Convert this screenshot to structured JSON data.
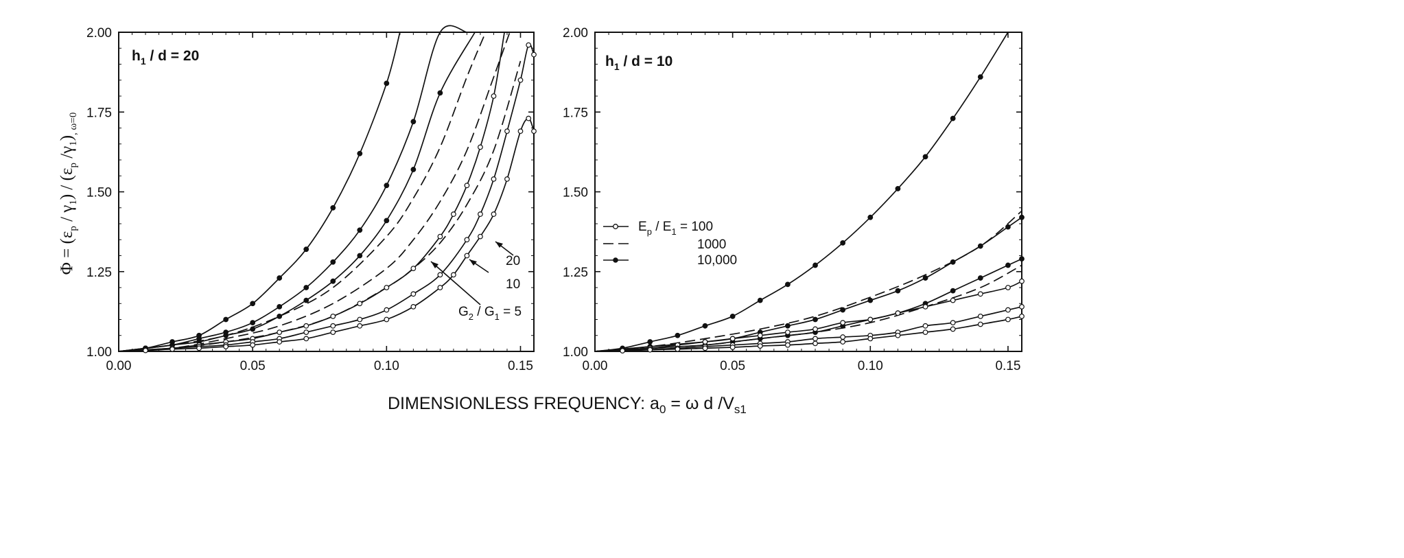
{
  "figure": {
    "ylabel": {
      "phi": "Φ",
      "eq": " = (ε",
      "p1": "p",
      "mid1": " / γ",
      "s1": "1",
      "mid2": ") / (ε",
      "p2": "p",
      "mid3": " /γ",
      "s2": "1",
      "end": ")",
      "sub": ", ω=0"
    },
    "xlabel": {
      "text": "DIMENSIONLESS FREQUENCY:  a",
      "sub0": "0",
      "mid": " = ω d /V",
      "sub1": "s1"
    },
    "legend": [
      {
        "label": "E",
        "sub": "p",
        "rest": " / E",
        "sub2": "1",
        "value": " = 100",
        "marker": "open",
        "dash": "solid"
      },
      {
        "label": "",
        "value": "1000",
        "marker": "none",
        "dash": "dashed"
      },
      {
        "label": "",
        "value": "10,000",
        "marker": "filled",
        "dash": "solid"
      }
    ],
    "annotations": {
      "g20": "20",
      "g10": "10",
      "g5_a": "G",
      "g5_sub1": "2",
      "g5_b": " / G",
      "g5_sub2": "1",
      "g5_c": " = 5"
    }
  },
  "chart_data": [
    {
      "type": "line",
      "panel_label": {
        "main": "h",
        "sub": "1",
        "rest": " / d = 20"
      },
      "xlim": [
        0,
        0.155
      ],
      "ylim": [
        1.0,
        2.0
      ],
      "x_ticks": [
        "0.00",
        "0.05",
        "0.10",
        "0.15"
      ],
      "y_ticks": [
        "1.00",
        "1.25",
        "1.50",
        "1.75",
        "2.00"
      ],
      "series": [
        {
          "G2_G1": "20",
          "Ep_E1": "10,000",
          "marker": "filled",
          "dash": "solid",
          "x": [
            0,
            0.01,
            0.02,
            0.03,
            0.04,
            0.05,
            0.06,
            0.07,
            0.08,
            0.09,
            0.1,
            0.105
          ],
          "y": [
            1.0,
            1.01,
            1.03,
            1.05,
            1.1,
            1.15,
            1.23,
            1.32,
            1.45,
            1.62,
            1.84,
            2.0
          ]
        },
        {
          "G2_G1": "10",
          "Ep_E1": "10,000",
          "marker": "filled",
          "dash": "solid",
          "x": [
            0,
            0.01,
            0.02,
            0.03,
            0.04,
            0.05,
            0.06,
            0.07,
            0.08,
            0.09,
            0.1,
            0.11,
            0.12,
            0.13
          ],
          "y": [
            1.0,
            1.01,
            1.02,
            1.04,
            1.06,
            1.09,
            1.14,
            1.2,
            1.28,
            1.38,
            1.52,
            1.72,
            2.0,
            2.0
          ]
        },
        {
          "G2_G1": "5",
          "Ep_E1": "10,000",
          "marker": "filled",
          "dash": "solid",
          "x": [
            0,
            0.01,
            0.02,
            0.03,
            0.04,
            0.05,
            0.06,
            0.07,
            0.08,
            0.09,
            0.1,
            0.11,
            0.12,
            0.133
          ],
          "y": [
            1.0,
            1.01,
            1.02,
            1.03,
            1.05,
            1.07,
            1.11,
            1.16,
            1.22,
            1.3,
            1.41,
            1.57,
            1.81,
            2.0
          ]
        },
        {
          "G2_G1": "20",
          "Ep_E1": "1000",
          "marker": "none",
          "dash": "dashed",
          "x": [
            0,
            0.02,
            0.04,
            0.06,
            0.08,
            0.1,
            0.11,
            0.12,
            0.13,
            0.137
          ],
          "y": [
            1.0,
            1.02,
            1.05,
            1.11,
            1.2,
            1.36,
            1.48,
            1.64,
            1.86,
            2.0
          ]
        },
        {
          "G2_G1": "10",
          "Ep_E1": "1000",
          "marker": "none",
          "dash": "dashed",
          "x": [
            0,
            0.02,
            0.04,
            0.06,
            0.08,
            0.1,
            0.11,
            0.12,
            0.13,
            0.14,
            0.146
          ],
          "y": [
            1.0,
            1.01,
            1.04,
            1.08,
            1.15,
            1.26,
            1.35,
            1.47,
            1.63,
            1.86,
            2.0
          ]
        },
        {
          "G2_G1": "5",
          "Ep_E1": "1000",
          "marker": "none",
          "dash": "dashed",
          "x": [
            0,
            0.02,
            0.04,
            0.06,
            0.08,
            0.1,
            0.11,
            0.12,
            0.13,
            0.14,
            0.15
          ],
          "y": [
            1.0,
            1.01,
            1.03,
            1.06,
            1.11,
            1.2,
            1.26,
            1.34,
            1.46,
            1.63,
            1.91
          ]
        },
        {
          "G2_G1": "20",
          "Ep_E1": "100",
          "marker": "open",
          "dash": "solid",
          "x": [
            0,
            0.01,
            0.02,
            0.03,
            0.04,
            0.05,
            0.06,
            0.07,
            0.08,
            0.09,
            0.1,
            0.11,
            0.12,
            0.125,
            0.13,
            0.135,
            0.14,
            0.144
          ],
          "y": [
            1.0,
            1.005,
            1.01,
            1.02,
            1.03,
            1.04,
            1.06,
            1.08,
            1.11,
            1.15,
            1.2,
            1.26,
            1.36,
            1.43,
            1.52,
            1.64,
            1.8,
            2.0
          ]
        },
        {
          "G2_G1": "10",
          "Ep_E1": "100",
          "marker": "open",
          "dash": "solid",
          "x": [
            0,
            0.01,
            0.02,
            0.03,
            0.04,
            0.05,
            0.06,
            0.07,
            0.08,
            0.09,
            0.1,
            0.11,
            0.12,
            0.13,
            0.135,
            0.14,
            0.145,
            0.15,
            0.153,
            0.155
          ],
          "y": [
            1.0,
            1.005,
            1.01,
            1.015,
            1.02,
            1.03,
            1.04,
            1.06,
            1.08,
            1.1,
            1.13,
            1.18,
            1.24,
            1.35,
            1.43,
            1.54,
            1.69,
            1.85,
            1.96,
            1.93
          ]
        },
        {
          "G2_G1": "5",
          "Ep_E1": "100",
          "marker": "open",
          "dash": "solid",
          "x": [
            0,
            0.01,
            0.02,
            0.03,
            0.04,
            0.05,
            0.06,
            0.07,
            0.08,
            0.09,
            0.1,
            0.11,
            0.12,
            0.125,
            0.13,
            0.135,
            0.14,
            0.145,
            0.15,
            0.153,
            0.155
          ],
          "y": [
            1.0,
            1.003,
            1.007,
            1.01,
            1.015,
            1.02,
            1.03,
            1.04,
            1.06,
            1.08,
            1.1,
            1.14,
            1.2,
            1.24,
            1.3,
            1.36,
            1.43,
            1.54,
            1.69,
            1.73,
            1.69
          ]
        }
      ]
    },
    {
      "type": "line",
      "panel_label": {
        "main": "h",
        "sub": "1",
        "rest": " / d = 10"
      },
      "xlim": [
        0,
        0.155
      ],
      "ylim": [
        1.0,
        2.0
      ],
      "x_ticks": [
        "0.00",
        "0.05",
        "0.10",
        "0.15"
      ],
      "y_ticks": [
        "1.00",
        "1.25",
        "1.50",
        "1.75",
        "2.00"
      ],
      "series": [
        {
          "G2_G1": "20",
          "Ep_E1": "10,000",
          "marker": "filled",
          "dash": "solid",
          "x": [
            0,
            0.01,
            0.02,
            0.03,
            0.04,
            0.05,
            0.06,
            0.07,
            0.08,
            0.09,
            0.1,
            0.11,
            0.12,
            0.13,
            0.14,
            0.15
          ],
          "y": [
            1.0,
            1.01,
            1.03,
            1.05,
            1.08,
            1.11,
            1.16,
            1.21,
            1.27,
            1.34,
            1.42,
            1.51,
            1.61,
            1.73,
            1.86,
            2.0
          ]
        },
        {
          "G2_G1": "10",
          "Ep_E1": "10,000",
          "marker": "filled",
          "dash": "solid",
          "x": [
            0,
            0.02,
            0.04,
            0.05,
            0.06,
            0.07,
            0.08,
            0.09,
            0.1,
            0.11,
            0.12,
            0.13,
            0.14,
            0.15,
            0.155
          ],
          "y": [
            1.0,
            1.015,
            1.03,
            1.04,
            1.06,
            1.08,
            1.1,
            1.13,
            1.16,
            1.19,
            1.23,
            1.28,
            1.33,
            1.39,
            1.42
          ]
        },
        {
          "G2_G1": "5",
          "Ep_E1": "10,000",
          "marker": "filled",
          "dash": "solid",
          "x": [
            0,
            0.02,
            0.04,
            0.05,
            0.06,
            0.07,
            0.08,
            0.09,
            0.1,
            0.11,
            0.12,
            0.13,
            0.14,
            0.15,
            0.155
          ],
          "y": [
            1.0,
            1.01,
            1.02,
            1.03,
            1.04,
            1.05,
            1.06,
            1.08,
            1.1,
            1.12,
            1.15,
            1.19,
            1.23,
            1.27,
            1.29
          ]
        },
        {
          "G2_G1": "10",
          "Ep_E1": "1000",
          "marker": "none",
          "dash": "dashed",
          "x": [
            0,
            0.02,
            0.04,
            0.06,
            0.08,
            0.1,
            0.12,
            0.14,
            0.155
          ],
          "y": [
            1.0,
            1.015,
            1.04,
            1.07,
            1.11,
            1.17,
            1.24,
            1.33,
            1.44
          ]
        },
        {
          "G2_G1": "5",
          "Ep_E1": "1000",
          "marker": "none",
          "dash": "dashed",
          "x": [
            0,
            0.02,
            0.04,
            0.06,
            0.08,
            0.1,
            0.12,
            0.14,
            0.155
          ],
          "y": [
            1.0,
            1.01,
            1.02,
            1.04,
            1.06,
            1.09,
            1.14,
            1.2,
            1.27
          ]
        },
        {
          "G2_G1": "20",
          "Ep_E1": "100",
          "marker": "open",
          "dash": "solid",
          "x": [
            0,
            0.01,
            0.02,
            0.03,
            0.04,
            0.05,
            0.06,
            0.07,
            0.08,
            0.09,
            0.1,
            0.11,
            0.12,
            0.13,
            0.14,
            0.15,
            0.155
          ],
          "y": [
            1.0,
            1.005,
            1.01,
            1.02,
            1.03,
            1.04,
            1.05,
            1.06,
            1.07,
            1.09,
            1.1,
            1.12,
            1.14,
            1.16,
            1.18,
            1.2,
            1.22
          ]
        },
        {
          "G2_G1": "10",
          "Ep_E1": "100",
          "marker": "open",
          "dash": "solid",
          "x": [
            0,
            0.01,
            0.02,
            0.03,
            0.04,
            0.05,
            0.06,
            0.07,
            0.08,
            0.09,
            0.1,
            0.11,
            0.12,
            0.13,
            0.14,
            0.15,
            0.155
          ],
          "y": [
            1.0,
            1.003,
            1.006,
            1.01,
            1.015,
            1.02,
            1.025,
            1.03,
            1.04,
            1.045,
            1.05,
            1.06,
            1.08,
            1.09,
            1.11,
            1.13,
            1.14
          ]
        },
        {
          "G2_G1": "5",
          "Ep_E1": "100",
          "marker": "open",
          "dash": "solid",
          "x": [
            0,
            0.01,
            0.02,
            0.03,
            0.04,
            0.05,
            0.06,
            0.07,
            0.08,
            0.09,
            0.1,
            0.11,
            0.12,
            0.13,
            0.14,
            0.15,
            0.155
          ],
          "y": [
            1.0,
            1.002,
            1.005,
            1.007,
            1.01,
            1.013,
            1.017,
            1.02,
            1.025,
            1.03,
            1.04,
            1.05,
            1.06,
            1.07,
            1.085,
            1.1,
            1.11
          ]
        }
      ]
    }
  ]
}
